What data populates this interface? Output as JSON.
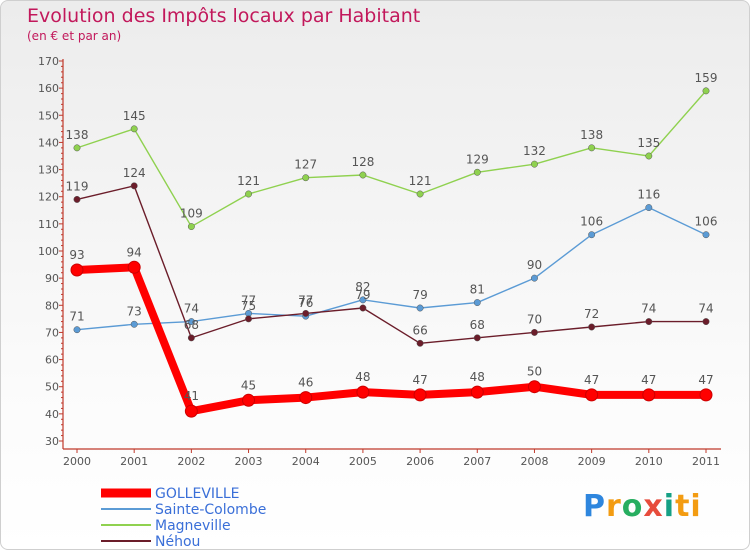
{
  "header": {
    "title": "Evolution des Impôts locaux par Habitant",
    "subtitle": "(en € et par an)"
  },
  "logo": {
    "text": "Proxiti"
  },
  "chart_data": {
    "type": "line",
    "title": "Evolution des Impôts locaux par Habitant",
    "subtitle": "(en € et par an)",
    "xlabel": "",
    "ylabel": "",
    "ylim": [
      30,
      170
    ],
    "yticks": [
      30,
      40,
      50,
      60,
      70,
      80,
      90,
      100,
      110,
      120,
      130,
      140,
      150,
      160,
      170
    ],
    "grid": false,
    "legend_position": "bottom-left",
    "categories": [
      "2000",
      "2001",
      "2002",
      "2003",
      "2004",
      "2005",
      "2006",
      "2007",
      "2008",
      "2009",
      "2010",
      "2011"
    ],
    "series": [
      {
        "name": "GOLLEVILLE",
        "color": "#ff0000",
        "values": [
          93,
          94,
          41,
          45,
          46,
          48,
          47,
          48,
          50,
          47,
          47,
          47
        ]
      },
      {
        "name": "Sainte-Colombe",
        "color": "#5b9bd5",
        "values": [
          71,
          73,
          74,
          77,
          76,
          82,
          79,
          81,
          90,
          106,
          116,
          106
        ]
      },
      {
        "name": "Magneville",
        "color": "#8fd14f",
        "values": [
          138,
          145,
          109,
          121,
          127,
          128,
          121,
          129,
          132,
          138,
          135,
          159
        ]
      },
      {
        "name": "Néhou",
        "color": "#6b1d2a",
        "values": [
          119,
          124,
          68,
          75,
          77,
          79,
          66,
          68,
          70,
          72,
          74,
          74
        ]
      }
    ]
  }
}
